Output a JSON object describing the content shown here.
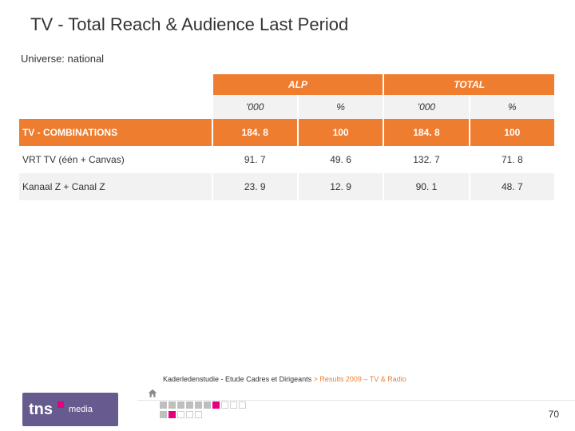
{
  "title": "TV - Total Reach & Audience Last Period",
  "subtitle": "Universe: national",
  "table": {
    "group_headers": [
      "ALP",
      "TOTAL"
    ],
    "sub_headers": [
      "'000",
      "%",
      "'000",
      "%"
    ],
    "rows": [
      {
        "label": "TV - COMBINATIONS",
        "vals": [
          "184. 8",
          "100",
          "184. 8",
          "100"
        ],
        "highlight": true
      },
      {
        "label": "VRT TV (één + Canvas)",
        "vals": [
          "91. 7",
          "49. 6",
          "132. 7",
          "71. 8"
        ],
        "highlight": false
      },
      {
        "label": "Kanaal Z + Canal Z",
        "vals": [
          "23. 9",
          "12. 9",
          "90. 1",
          "48. 7"
        ],
        "highlight": false
      }
    ],
    "colors": {
      "header_bg": "#ef7d30",
      "header_text": "#ffffff",
      "alt_bg": "#f2f2f2",
      "text": "#333333"
    }
  },
  "footer": {
    "text_plain": "Kaderledenstudie - Etude Cadres et Dirigeants ",
    "text_accent": "> Results 2009 – TV & Radio",
    "page_number": "70",
    "logo_main": "tns",
    "logo_sub": "media",
    "logo_bg": "#675a8f",
    "logo_dot": "#e4007f"
  }
}
